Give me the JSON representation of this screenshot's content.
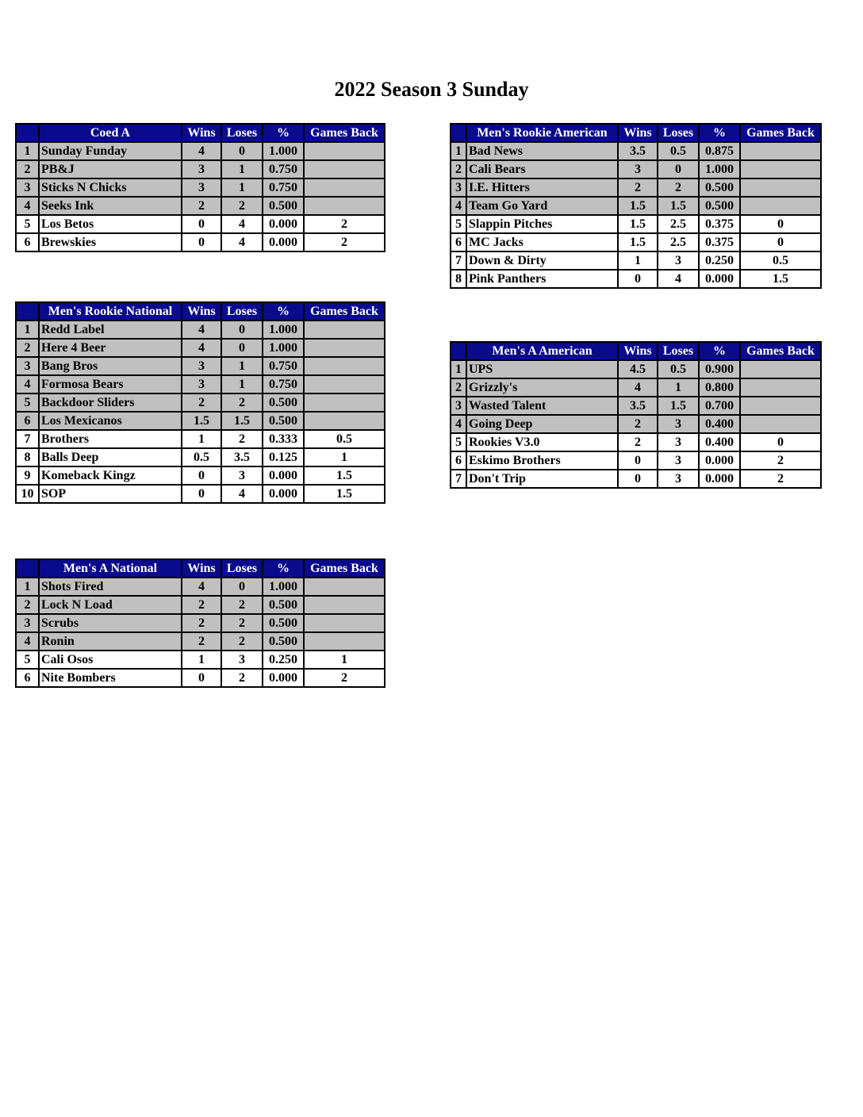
{
  "title": "2022 Season 3 Sunday",
  "columns": {
    "wins": "Wins",
    "loses": "Loses",
    "pct": "%",
    "games_back": "Games Back"
  },
  "colors": {
    "header_bg": "#0a0a8c",
    "header_text": "#ffffff",
    "qualified_row": "#c0c0c0"
  },
  "tables": {
    "coed_a": {
      "division": "Coed A",
      "rows": [
        {
          "rank": "1",
          "team": "Sunday Funday",
          "wins": "4",
          "loses": "0",
          "pct": "1.000",
          "games_back": ""
        },
        {
          "rank": "2",
          "team": "PB&J",
          "wins": "3",
          "loses": "1",
          "pct": "0.750",
          "games_back": ""
        },
        {
          "rank": "3",
          "team": "Sticks N Chicks",
          "wins": "3",
          "loses": "1",
          "pct": "0.750",
          "games_back": ""
        },
        {
          "rank": "4",
          "team": "Seeks Ink",
          "wins": "2",
          "loses": "2",
          "pct": "0.500",
          "games_back": ""
        },
        {
          "rank": "5",
          "team": "Los Betos",
          "wins": "0",
          "loses": "4",
          "pct": "0.000",
          "games_back": "2"
        },
        {
          "rank": "6",
          "team": "Brewskies",
          "wins": "0",
          "loses": "4",
          "pct": "0.000",
          "games_back": "2"
        }
      ]
    },
    "mens_rookie_national": {
      "division": "Men's Rookie National",
      "rows": [
        {
          "rank": "1",
          "team": "Redd Label",
          "wins": "4",
          "loses": "0",
          "pct": "1.000",
          "games_back": ""
        },
        {
          "rank": "2",
          "team": "Here 4 Beer",
          "wins": "4",
          "loses": "0",
          "pct": "1.000",
          "games_back": ""
        },
        {
          "rank": "3",
          "team": "Bang Bros",
          "wins": "3",
          "loses": "1",
          "pct": "0.750",
          "games_back": ""
        },
        {
          "rank": "4",
          "team": "Formosa Bears",
          "wins": "3",
          "loses": "1",
          "pct": "0.750",
          "games_back": ""
        },
        {
          "rank": "5",
          "team": "Backdoor Sliders",
          "wins": "2",
          "loses": "2",
          "pct": "0.500",
          "games_back": ""
        },
        {
          "rank": "6",
          "team": "Los Mexicanos",
          "wins": "1.5",
          "loses": "1.5",
          "pct": "0.500",
          "games_back": ""
        },
        {
          "rank": "7",
          "team": "Brothers",
          "wins": "1",
          "loses": "2",
          "pct": "0.333",
          "games_back": "0.5"
        },
        {
          "rank": "8",
          "team": "Balls Deep",
          "wins": "0.5",
          "loses": "3.5",
          "pct": "0.125",
          "games_back": "1"
        },
        {
          "rank": "9",
          "team": "Komeback Kingz",
          "wins": "0",
          "loses": "3",
          "pct": "0.000",
          "games_back": "1.5"
        },
        {
          "rank": "10",
          "team": "SOP",
          "wins": "0",
          "loses": "4",
          "pct": "0.000",
          "games_back": "1.5"
        }
      ]
    },
    "mens_a_national": {
      "division": "Men's A National",
      "rows": [
        {
          "rank": "1",
          "team": "Shots Fired",
          "wins": "4",
          "loses": "0",
          "pct": "1.000",
          "games_back": ""
        },
        {
          "rank": "2",
          "team": "Lock N Load",
          "wins": "2",
          "loses": "2",
          "pct": "0.500",
          "games_back": ""
        },
        {
          "rank": "3",
          "team": "Scrubs",
          "wins": "2",
          "loses": "2",
          "pct": "0.500",
          "games_back": ""
        },
        {
          "rank": "4",
          "team": "Ronin",
          "wins": "2",
          "loses": "2",
          "pct": "0.500",
          "games_back": ""
        },
        {
          "rank": "5",
          "team": "Cali Osos",
          "wins": "1",
          "loses": "3",
          "pct": "0.250",
          "games_back": "1"
        },
        {
          "rank": "6",
          "team": "Nite Bombers",
          "wins": "0",
          "loses": "2",
          "pct": "0.000",
          "games_back": "2"
        }
      ]
    },
    "mens_rookie_american": {
      "division": "Men's Rookie American",
      "rows": [
        {
          "rank": "1",
          "team": "Bad News",
          "wins": "3.5",
          "loses": "0.5",
          "pct": "0.875",
          "games_back": ""
        },
        {
          "rank": "2",
          "team": "Cali Bears",
          "wins": "3",
          "loses": "0",
          "pct": "1.000",
          "games_back": ""
        },
        {
          "rank": "3",
          "team": "I.E. Hitters",
          "wins": "2",
          "loses": "2",
          "pct": "0.500",
          "games_back": ""
        },
        {
          "rank": "4",
          "team": "Team Go Yard",
          "wins": "1.5",
          "loses": "1.5",
          "pct": "0.500",
          "games_back": ""
        },
        {
          "rank": "5",
          "team": "Slappin Pitches",
          "wins": "1.5",
          "loses": "2.5",
          "pct": "0.375",
          "games_back": "0"
        },
        {
          "rank": "6",
          "team": "MC Jacks",
          "wins": "1.5",
          "loses": "2.5",
          "pct": "0.375",
          "games_back": "0"
        },
        {
          "rank": "7",
          "team": "Down & Dirty",
          "wins": "1",
          "loses": "3",
          "pct": "0.250",
          "games_back": "0.5"
        },
        {
          "rank": "8",
          "team": "Pink Panthers",
          "wins": "0",
          "loses": "4",
          "pct": "0.000",
          "games_back": "1.5"
        }
      ]
    },
    "mens_a_american": {
      "division": "Men's A American",
      "rows": [
        {
          "rank": "1",
          "team": "UPS",
          "wins": "4.5",
          "loses": "0.5",
          "pct": "0.900",
          "games_back": ""
        },
        {
          "rank": "2",
          "team": "Grizzly's",
          "wins": "4",
          "loses": "1",
          "pct": "0.800",
          "games_back": ""
        },
        {
          "rank": "3",
          "team": "Wasted Talent",
          "wins": "3.5",
          "loses": "1.5",
          "pct": "0.700",
          "games_back": ""
        },
        {
          "rank": "4",
          "team": "Going Deep",
          "wins": "2",
          "loses": "3",
          "pct": "0.400",
          "games_back": ""
        },
        {
          "rank": "5",
          "team": "Rookies V3.0",
          "wins": "2",
          "loses": "3",
          "pct": "0.400",
          "games_back": "0"
        },
        {
          "rank": "6",
          "team": "Eskimo Brothers",
          "wins": "0",
          "loses": "3",
          "pct": "0.000",
          "games_back": "2"
        },
        {
          "rank": "7",
          "team": "Don't Trip",
          "wins": "0",
          "loses": "3",
          "pct": "0.000",
          "games_back": "2"
        }
      ]
    }
  }
}
